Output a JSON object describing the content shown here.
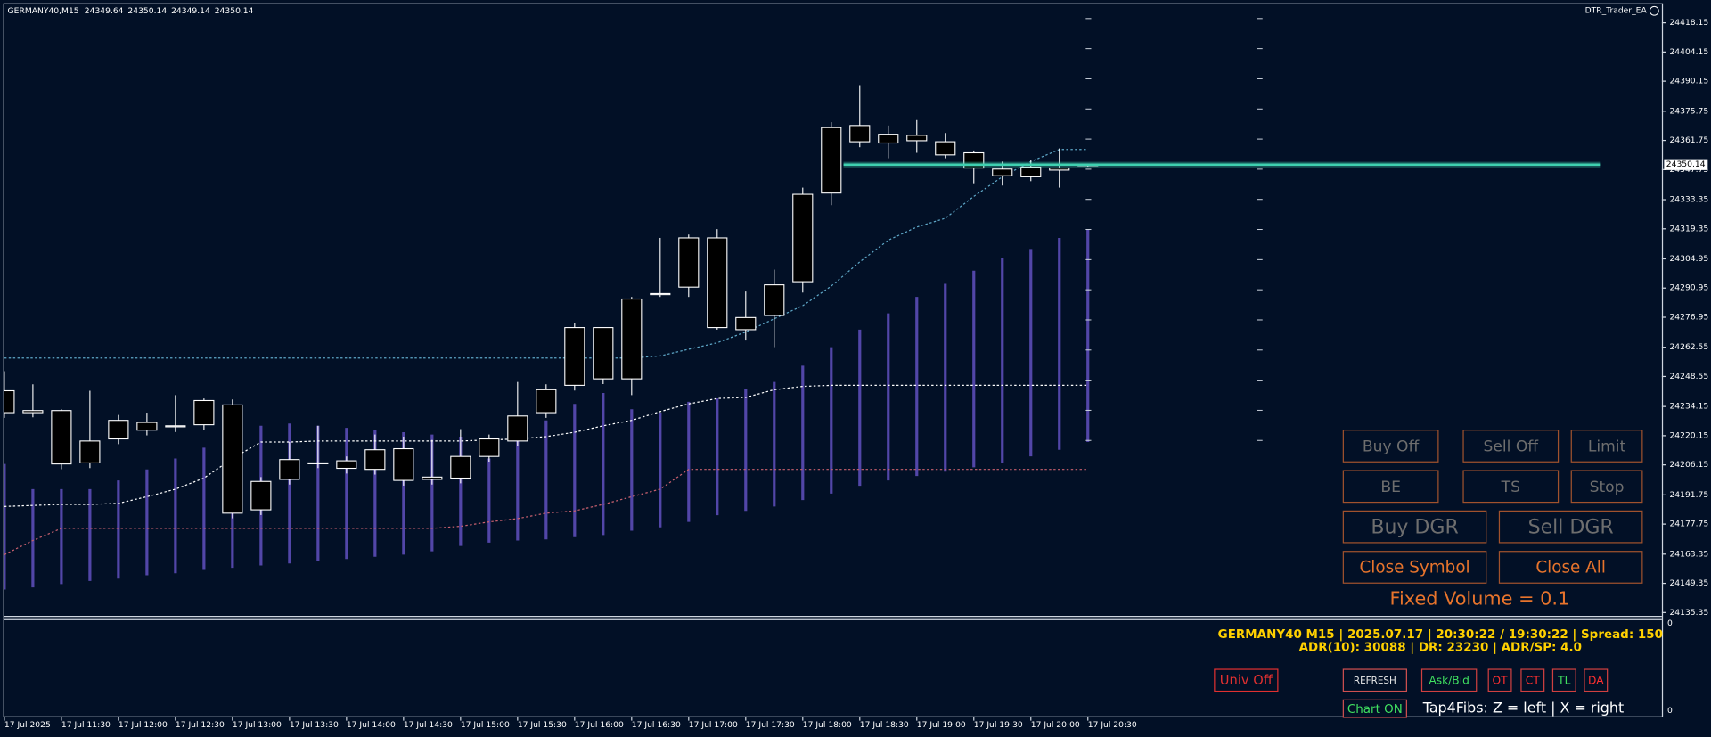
{
  "chart_data": {
    "type": "candlestick",
    "symbol": "GERMANY40,M15",
    "categories": [
      "17 Jul 2025",
      null,
      "17 Jul 11:30",
      null,
      "17 Jul 12:00",
      null,
      "17 Jul 12:30",
      null,
      "17 Jul 13:00",
      null,
      "17 Jul 13:30",
      null,
      "17 Jul 14:00",
      null,
      "17 Jul 14:30",
      null,
      "17 Jul 15:00",
      null,
      "17 Jul 15:30",
      null,
      "17 Jul 16:00",
      null,
      "17 Jul 16:30",
      null,
      "17 Jul 17:00",
      null,
      "17 Jul 17:30",
      null,
      "17 Jul 18:00",
      null,
      "17 Jul 18:30",
      null,
      "17 Jul 19:00",
      null,
      "17 Jul 19:30",
      null,
      "17 Jul 20:00",
      null,
      "17 Jul 20:30"
    ],
    "open": [
      24241.7,
      24231.2,
      24232.2,
      24207.1,
      24218.6,
      24222.8,
      24224.4,
      24225.4,
      24234.9,
      24184.6,
      24199.2,
      24207.1,
      24208.1,
      24204.0,
      24213.9,
      24199.2,
      24199.8,
      24210.2,
      24217.6,
      24231.2,
      24244.3,
      24272.0,
      24247.4,
      24287.8,
      24291.4,
      24315.0,
      24271.0,
      24277.8,
      24294.0,
      24336.5,
      24368.9,
      24360.5,
      24364.2,
      24361.1,
      24355.8,
      24348.0,
      24344.3,
      24348.5,
      24349.64
    ],
    "high": [
      24251.1,
      24244.8,
      24232.8,
      24241.7,
      24230.1,
      24231.2,
      24239.6,
      24238.0,
      24237.5,
      24200.3,
      24217.1,
      24224.9,
      24210.2,
      24220.7,
      24219.7,
      24218.1,
      24223.3,
      24220.7,
      24245.9,
      24244.8,
      24274.1,
      24272.0,
      24286.7,
      24315.0,
      24316.6,
      24319.2,
      24289.3,
      24299.8,
      24339.1,
      24370.5,
      24388.3,
      24368.9,
      24371.5,
      24365.3,
      24356.9,
      24351.6,
      24352.2,
      24357.9,
      24350.14
    ],
    "low": [
      24228.7,
      24229.0,
      24204.1,
      24204.6,
      24216.1,
      24220.3,
      24221.9,
      24222.9,
      24180.5,
      24182.1,
      24196.7,
      24204.6,
      24202.0,
      24201.5,
      24196.2,
      24196.7,
      24197.3,
      24207.7,
      24215.1,
      24228.7,
      24241.8,
      24244.9,
      24239.6,
      24286.7,
      24286.7,
      24271.0,
      24265.8,
      24262.6,
      24288.8,
      24330.7,
      24358.5,
      24353.2,
      24355.8,
      24353.2,
      24341.2,
      24340.1,
      24342.2,
      24339.1,
      24349.14
    ],
    "close": [
      24231.2,
      24232.2,
      24206.6,
      24217.6,
      24227.5,
      24226.5,
      24224.9,
      24237.0,
      24183.0,
      24198.2,
      24208.7,
      24207.1,
      24204.5,
      24213.4,
      24198.7,
      24200.3,
      24210.2,
      24218.6,
      24229.6,
      24242.2,
      24272.0,
      24247.4,
      24285.7,
      24288.3,
      24315.0,
      24272.0,
      24276.8,
      24292.5,
      24335.9,
      24367.9,
      24361.1,
      24364.7,
      24361.6,
      24354.8,
      24348.5,
      24344.8,
      24349.0,
      24347.5,
      24350.14
    ],
    "candle_color": "#ffffff",
    "body_color": "#000000",
    "price_line_color": "#3fd0b0",
    "overlays": {
      "upper": {
        "color": "#5fa8c8",
        "values": [
          24257.4,
          24257.4,
          24257.4,
          24257.4,
          24257.4,
          24257.4,
          24257.4,
          24257.4,
          24257.4,
          24257.4,
          24257.4,
          24257.4,
          24257.4,
          24257.4,
          24257.4,
          24257.4,
          24257.4,
          24257.4,
          24257.4,
          24257.4,
          24257.4,
          24257.4,
          24257.4,
          24258.4,
          24261.6,
          24264.7,
          24269.9,
          24276.2,
          24282.5,
          24291.9,
          24303.5,
          24313.9,
          24320.2,
          24324.4,
          24334.9,
          24344.3,
          24351.6,
          24357.4,
          24357.4
        ]
      },
      "middle": {
        "color": "#ffffff",
        "values": [
          24186.2,
          24186.7,
          24187.2,
          24187.2,
          24187.7,
          24190.9,
          24194.5,
          24199.8,
          24209.2,
          24217.1,
          24217.1,
          24217.6,
          24217.6,
          24217.6,
          24217.6,
          24217.6,
          24217.6,
          24218.1,
          24218.6,
          24219.7,
          24221.8,
          24224.9,
          24227.5,
          24231.7,
          24235.4,
          24238.0,
          24238.5,
          24242.2,
          24243.8,
          24244.3,
          24244.3,
          24244.3,
          24244.3,
          24244.3,
          24244.3,
          24244.3,
          24244.3,
          24244.3,
          24244.3
        ]
      },
      "lower": {
        "color": "#c8606e",
        "values": [
          24163.1,
          24169.9,
          24175.7,
          24175.7,
          24175.7,
          24175.7,
          24175.7,
          24175.7,
          24175.7,
          24175.7,
          24175.7,
          24175.7,
          24175.7,
          24175.7,
          24175.7,
          24175.7,
          24176.7,
          24178.8,
          24180.4,
          24183.0,
          24184.1,
          24187.2,
          24190.9,
          24194.5,
          24204.0,
          24204.0,
          24204.0,
          24204.0,
          24204.0,
          24204.0,
          24204.0,
          24204.0,
          24204.0,
          24204.0,
          24204.0,
          24204.0,
          24204.0,
          24204.0,
          24204.0
        ]
      },
      "range": {
        "color": "#5246a8",
        "high": [
          24206.6,
          24194.5,
          24194.5,
          24194.5,
          24198.7,
          24204.0,
          24209.2,
          24214.4,
          24219.7,
          24224.9,
          24226.0,
          24224.9,
          24223.9,
          24222.8,
          24221.8,
          24220.7,
          24219.7,
          24209.2,
          24222.3,
          24227.5,
          24235.4,
          24240.6,
          24232.8,
          24231.2,
          24236.4,
          24238.0,
          24242.7,
          24245.9,
          24253.7,
          24262.6,
          24271.0,
          24278.8,
          24286.7,
          24293.0,
          24299.3,
          24305.6,
          24309.7,
          24315.0,
          24319.2
        ],
        "low": [
          24146.4,
          24147.4,
          24149.0,
          24150.5,
          24151.6,
          24153.2,
          24154.2,
          24155.8,
          24156.8,
          24157.9,
          24158.9,
          24160.0,
          24161.0,
          24162.1,
          24163.1,
          24164.7,
          24167.3,
          24168.9,
          24169.9,
          24170.4,
          24171.5,
          24172.5,
          24174.6,
          24176.2,
          24178.8,
          24182.0,
          24184.1,
          24186.2,
          24189.3,
          24192.4,
          24196.1,
          24198.7,
          24200.8,
          24202.9,
          24205.0,
          24207.1,
          24210.2,
          24213.4,
          24217.1
        ]
      }
    },
    "ylim": [
      24134.3,
      24427.0
    ],
    "yticks": [
      24418.15,
      24404.15,
      24390.15,
      24375.75,
      24361.75,
      24347.75,
      24333.35,
      24319.35,
      24304.95,
      24290.95,
      24276.95,
      24262.55,
      24248.55,
      24234.15,
      24220.15,
      24206.15,
      24191.75,
      24177.75,
      24163.35,
      24149.35,
      24135.35
    ],
    "grid": false
  },
  "subwindow_axis": [
    0,
    0
  ],
  "ea_name": "DTR_Trader_EA",
  "ea_panel": {
    "rows": [
      [
        "Buy Off",
        "Sell Off",
        "Limit"
      ],
      [
        "BE",
        "TS",
        "Stop"
      ],
      [
        "Buy DGR",
        "Sell DGR"
      ],
      [
        "Close Symbol",
        "Close All"
      ]
    ],
    "volume": "Fixed Volume = 0.1"
  },
  "info": {
    "line1": "GERMANY40 M15 | 2025.07.17 | 20:30:22 / 19:30:22 | Spread: 150",
    "line2": "ADR(10): 30088 | DR: 23230 | ADR/SP: 4.0"
  },
  "toolbar": {
    "univ": "Univ Off",
    "refresh": "REFRESH",
    "askbid": "Ask/Bid",
    "ot": "OT",
    "ct": "CT",
    "tl": "TL",
    "da": "DA",
    "chart": "Chart ON",
    "hint": "Tap4Fibs: Z = left | X = right"
  }
}
